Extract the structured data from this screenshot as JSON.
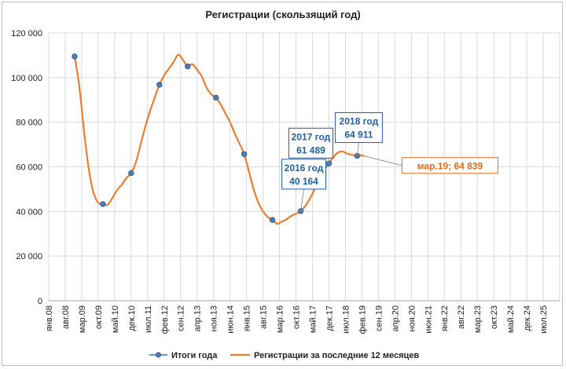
{
  "chart_data": {
    "type": "line",
    "title": "Регистрации (скользящий год)",
    "y_axis": {
      "min": 0,
      "max": 120000,
      "step": 20000,
      "tick_labels": [
        "0",
        "20 000",
        "40 000",
        "60 000",
        "80 000",
        "100 000",
        "120 000"
      ]
    },
    "x_axis": {
      "tick_labels": [
        "янв.08",
        "авг.08",
        "мар.09",
        "окт.09",
        "май.10",
        "дек.10",
        "июл.11",
        "фев.12",
        "сен.12",
        "апр.13",
        "ноя.13",
        "июн.14",
        "янв.15",
        "авг.15",
        "мар.16",
        "окт.16",
        "май.17",
        "дек.17",
        "июл.18",
        "фев.19",
        "сен.19",
        "апр.20",
        "ноя.20",
        "июн.21",
        "янв.22",
        "авг.22",
        "мар.23",
        "окт.23",
        "май.24",
        "дек.24",
        "июл.25"
      ],
      "tick_interval_months": 7
    },
    "grid": true,
    "legend_position": "bottom",
    "series": [
      {
        "name": "Итоги года",
        "kind": "markers",
        "color": "#2e75b6",
        "points": [
          {
            "x": "дек.08",
            "y": 109500
          },
          {
            "x": "дек.09",
            "y": 43300
          },
          {
            "x": "дек.10",
            "y": 57200
          },
          {
            "x": "дек.11",
            "y": 96800
          },
          {
            "x": "дек.12",
            "y": 105000
          },
          {
            "x": "дек.13",
            "y": 91000
          },
          {
            "x": "дек.14",
            "y": 65700
          },
          {
            "x": "дек.15",
            "y": 36200
          },
          {
            "x": "дек.16",
            "y": 40164
          },
          {
            "x": "дек.17",
            "y": 61489
          },
          {
            "x": "дек.18",
            "y": 64911
          }
        ]
      },
      {
        "name": "Регистрации за последние 12 месяцев",
        "kind": "line",
        "color": "#ed7d31",
        "points": [
          {
            "x": "дек.08",
            "y": 109500
          },
          {
            "x": "фев.09",
            "y": 96000
          },
          {
            "x": "апр.09",
            "y": 76000
          },
          {
            "x": "июн.09",
            "y": 59000
          },
          {
            "x": "авг.09",
            "y": 48500
          },
          {
            "x": "окт.09",
            "y": 44000
          },
          {
            "x": "дек.09",
            "y": 43300
          },
          {
            "x": "фев.10",
            "y": 43000
          },
          {
            "x": "апр.10",
            "y": 46000
          },
          {
            "x": "июн.10",
            "y": 49500
          },
          {
            "x": "авг.10",
            "y": 52000
          },
          {
            "x": "окт.10",
            "y": 55000
          },
          {
            "x": "дек.10",
            "y": 57200
          },
          {
            "x": "фев.11",
            "y": 62000
          },
          {
            "x": "апр.11",
            "y": 70000
          },
          {
            "x": "июн.11",
            "y": 78000
          },
          {
            "x": "авг.11",
            "y": 85000
          },
          {
            "x": "окт.11",
            "y": 91000
          },
          {
            "x": "дек.11",
            "y": 96800
          },
          {
            "x": "фев.12",
            "y": 101000
          },
          {
            "x": "апр.12",
            "y": 104000
          },
          {
            "x": "июн.12",
            "y": 107000
          },
          {
            "x": "авг.12",
            "y": 110300
          },
          {
            "x": "окт.12",
            "y": 108000
          },
          {
            "x": "дек.12",
            "y": 105000
          },
          {
            "x": "фев.13",
            "y": 106000
          },
          {
            "x": "апр.13",
            "y": 103500
          },
          {
            "x": "июн.13",
            "y": 100500
          },
          {
            "x": "авг.13",
            "y": 95500
          },
          {
            "x": "окт.13",
            "y": 92500
          },
          {
            "x": "дек.13",
            "y": 91000
          },
          {
            "x": "фев.14",
            "y": 88000
          },
          {
            "x": "апр.14",
            "y": 84000
          },
          {
            "x": "июн.14",
            "y": 80000
          },
          {
            "x": "авг.14",
            "y": 75000
          },
          {
            "x": "окт.14",
            "y": 70500
          },
          {
            "x": "дек.14",
            "y": 65700
          },
          {
            "x": "фев.15",
            "y": 58000
          },
          {
            "x": "апр.15",
            "y": 50000
          },
          {
            "x": "июн.15",
            "y": 44000
          },
          {
            "x": "авг.15",
            "y": 40000
          },
          {
            "x": "окт.15",
            "y": 37500
          },
          {
            "x": "дек.15",
            "y": 36200
          },
          {
            "x": "фев.16",
            "y": 34500
          },
          {
            "x": "апр.16",
            "y": 35500
          },
          {
            "x": "июн.16",
            "y": 36500
          },
          {
            "x": "авг.16",
            "y": 38000
          },
          {
            "x": "окт.16",
            "y": 39000
          },
          {
            "x": "дек.16",
            "y": 40164
          },
          {
            "x": "фев.17",
            "y": 42500
          },
          {
            "x": "апр.17",
            "y": 46000
          },
          {
            "x": "июн.17",
            "y": 50000
          },
          {
            "x": "авг.17",
            "y": 54500
          },
          {
            "x": "окт.17",
            "y": 58500
          },
          {
            "x": "дек.17",
            "y": 61489
          },
          {
            "x": "фев.18",
            "y": 64500
          },
          {
            "x": "апр.18",
            "y": 66500
          },
          {
            "x": "июн.18",
            "y": 66800
          },
          {
            "x": "авг.18",
            "y": 65800
          },
          {
            "x": "окт.18",
            "y": 65300
          },
          {
            "x": "дек.18",
            "y": 64911
          },
          {
            "x": "фев.19",
            "y": 65200
          },
          {
            "x": "мар.19",
            "y": 64839
          }
        ]
      }
    ],
    "annotations": [
      {
        "point": "дек.16",
        "lines": [
          "2016 год",
          "40 164"
        ],
        "color": "#1f5fa8"
      },
      {
        "point": "дек.17",
        "lines": [
          "2017 год",
          "61 489"
        ],
        "color": "#1f5fa8"
      },
      {
        "point": "дек.18",
        "lines": [
          "2018 год",
          "64 911"
        ],
        "color": "#1f5fa8"
      },
      {
        "point": "мар.19",
        "lines": [
          "мар.19; 64 839"
        ],
        "color": "#e36c1a"
      }
    ]
  }
}
